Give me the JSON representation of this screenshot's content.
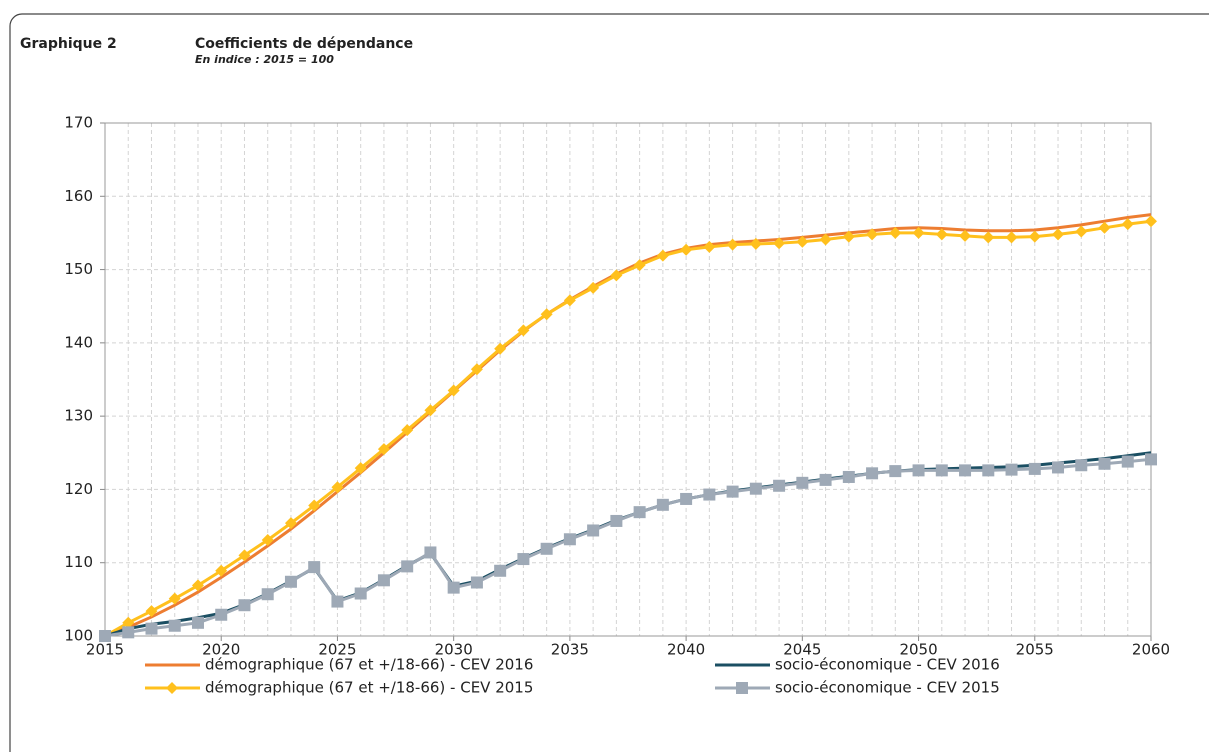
{
  "chart_data": {
    "type": "line",
    "figure_label": "Graphique 2",
    "title": "Coefficients de dépendance",
    "subtitle": "En indice : 2015 = 100",
    "x": [
      2015,
      2016,
      2017,
      2018,
      2019,
      2020,
      2021,
      2022,
      2023,
      2024,
      2025,
      2026,
      2027,
      2028,
      2029,
      2030,
      2031,
      2032,
      2033,
      2034,
      2035,
      2036,
      2037,
      2038,
      2039,
      2040,
      2041,
      2042,
      2043,
      2044,
      2045,
      2046,
      2047,
      2048,
      2049,
      2050,
      2051,
      2052,
      2053,
      2054,
      2055,
      2056,
      2057,
      2058,
      2059,
      2060
    ],
    "xlim": [
      2015,
      2060
    ],
    "xticks": [
      2015,
      2020,
      2025,
      2030,
      2035,
      2040,
      2045,
      2050,
      2055,
      2060
    ],
    "ylim": [
      100,
      170
    ],
    "yticks": [
      100,
      110,
      120,
      130,
      140,
      150,
      160,
      170
    ],
    "grid": true,
    "legend": "bottom",
    "series": [
      {
        "name": "démographique (67 et +/18-66) - CEV 2016",
        "color": "#ed7d31",
        "marker": "none",
        "values": [
          100,
          101.2,
          102.6,
          104.2,
          106.0,
          108.0,
          110.1,
          112.3,
          114.6,
          117.1,
          119.7,
          122.3,
          125.0,
          127.8,
          130.6,
          133.4,
          136.2,
          139.0,
          141.6,
          143.9,
          145.9,
          147.7,
          149.4,
          150.9,
          152.1,
          152.9,
          153.4,
          153.7,
          153.9,
          154.1,
          154.4,
          154.7,
          155.0,
          155.3,
          155.6,
          155.7,
          155.6,
          155.4,
          155.3,
          155.3,
          155.4,
          155.7,
          156.1,
          156.6,
          157.1,
          157.5
        ]
      },
      {
        "name": "démographique (67 et +/18-66) - CEV 2015",
        "color": "#ffc01d",
        "marker": "diamond",
        "values": [
          100,
          101.8,
          103.4,
          105.1,
          106.9,
          108.9,
          111.0,
          113.1,
          115.4,
          117.8,
          120.3,
          122.9,
          125.5,
          128.1,
          130.8,
          133.5,
          136.4,
          139.2,
          141.7,
          143.9,
          145.8,
          147.5,
          149.2,
          150.6,
          151.9,
          152.7,
          153.1,
          153.4,
          153.5,
          153.6,
          153.8,
          154.1,
          154.5,
          154.8,
          155.0,
          155.0,
          154.8,
          154.6,
          154.4,
          154.4,
          154.5,
          154.8,
          155.2,
          155.7,
          156.2,
          156.6
        ]
      },
      {
        "name": "socio-économique - CEV 2016",
        "color": "#1b4f63",
        "marker": "none",
        "values": [
          100,
          101.0,
          101.6,
          102.0,
          102.5,
          103.1,
          104.3,
          105.8,
          107.5,
          109.3,
          104.8,
          105.9,
          107.7,
          109.6,
          111.3,
          106.8,
          107.5,
          109.1,
          110.6,
          112.0,
          113.3,
          114.5,
          115.8,
          116.9,
          117.9,
          118.7,
          119.3,
          119.8,
          120.2,
          120.6,
          121.0,
          121.4,
          121.8,
          122.2,
          122.5,
          122.7,
          122.8,
          122.9,
          123.0,
          123.1,
          123.3,
          123.6,
          123.9,
          124.2,
          124.6,
          125.0
        ]
      },
      {
        "name": "socio-économique - CEV 2015",
        "color": "#9ea9b6",
        "marker": "square",
        "values": [
          100,
          100.5,
          101.0,
          101.4,
          101.8,
          102.9,
          104.2,
          105.7,
          107.4,
          109.4,
          104.7,
          105.8,
          107.6,
          109.5,
          111.4,
          106.6,
          107.3,
          108.9,
          110.5,
          111.9,
          113.2,
          114.4,
          115.7,
          116.9,
          117.9,
          118.7,
          119.3,
          119.7,
          120.1,
          120.5,
          120.9,
          121.3,
          121.7,
          122.2,
          122.5,
          122.6,
          122.6,
          122.6,
          122.6,
          122.7,
          122.8,
          123.0,
          123.3,
          123.5,
          123.8,
          124.1
        ]
      }
    ]
  }
}
